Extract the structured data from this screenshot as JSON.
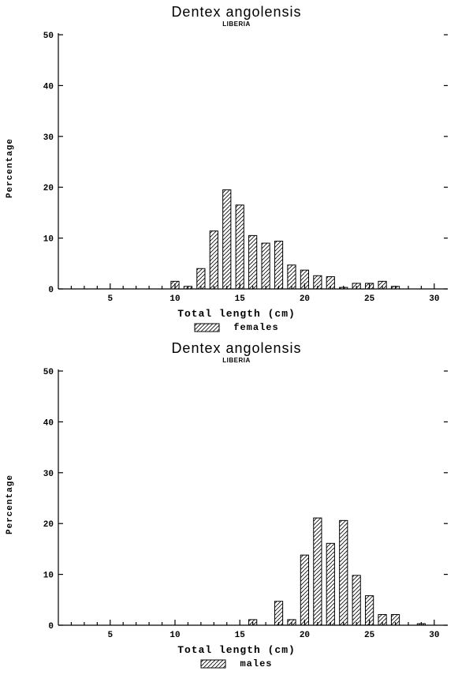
{
  "page": {
    "background": "#ffffff",
    "ink": "#000000"
  },
  "chart_data": [
    {
      "type": "bar",
      "title": "Dentex angolensis",
      "subtitle": "LIBERIA",
      "ylabel": "Percentage",
      "xlabel": "Total length (cm)",
      "legend_label": "females",
      "legend_position": "bottom-center",
      "grid": false,
      "xlim": [
        1,
        30.8
      ],
      "ylim": [
        0,
        50
      ],
      "yticks": [
        0,
        10,
        20,
        30,
        40,
        50
      ],
      "xticks": [
        5,
        10,
        15,
        20,
        25,
        30
      ],
      "minor_x_ticks_every": 1,
      "bar_width_units": 0.62,
      "x": [
        10,
        11,
        12,
        13,
        14,
        15,
        16,
        17,
        18,
        19,
        20,
        21,
        22,
        23,
        24,
        25,
        26,
        27
      ],
      "values": [
        1.5,
        0.5,
        4,
        11.4,
        19.5,
        16.5,
        10.5,
        9,
        9.4,
        4.7,
        3.7,
        2.6,
        2.4,
        0.3,
        1.1,
        1.1,
        1.5,
        0.5
      ]
    },
    {
      "type": "bar",
      "title": "Dentex angolensis",
      "subtitle": "LIBERIA",
      "ylabel": "Percentage",
      "xlabel": "Total length (cm)",
      "legend_label": "males",
      "legend_position": "bottom-center",
      "grid": false,
      "xlim": [
        1,
        30.8
      ],
      "ylim": [
        0,
        50
      ],
      "yticks": [
        0,
        10,
        20,
        30,
        40,
        50
      ],
      "xticks": [
        5,
        10,
        15,
        20,
        25,
        30
      ],
      "minor_x_ticks_every": 1,
      "bar_width_units": 0.62,
      "x": [
        16,
        18,
        19,
        20,
        21,
        22,
        23,
        24,
        25,
        26,
        27,
        29
      ],
      "values": [
        1.1,
        4.7,
        1.1,
        13.8,
        21.1,
        16.1,
        20.6,
        9.8,
        5.8,
        2.1,
        2.1,
        0.3
      ]
    }
  ]
}
